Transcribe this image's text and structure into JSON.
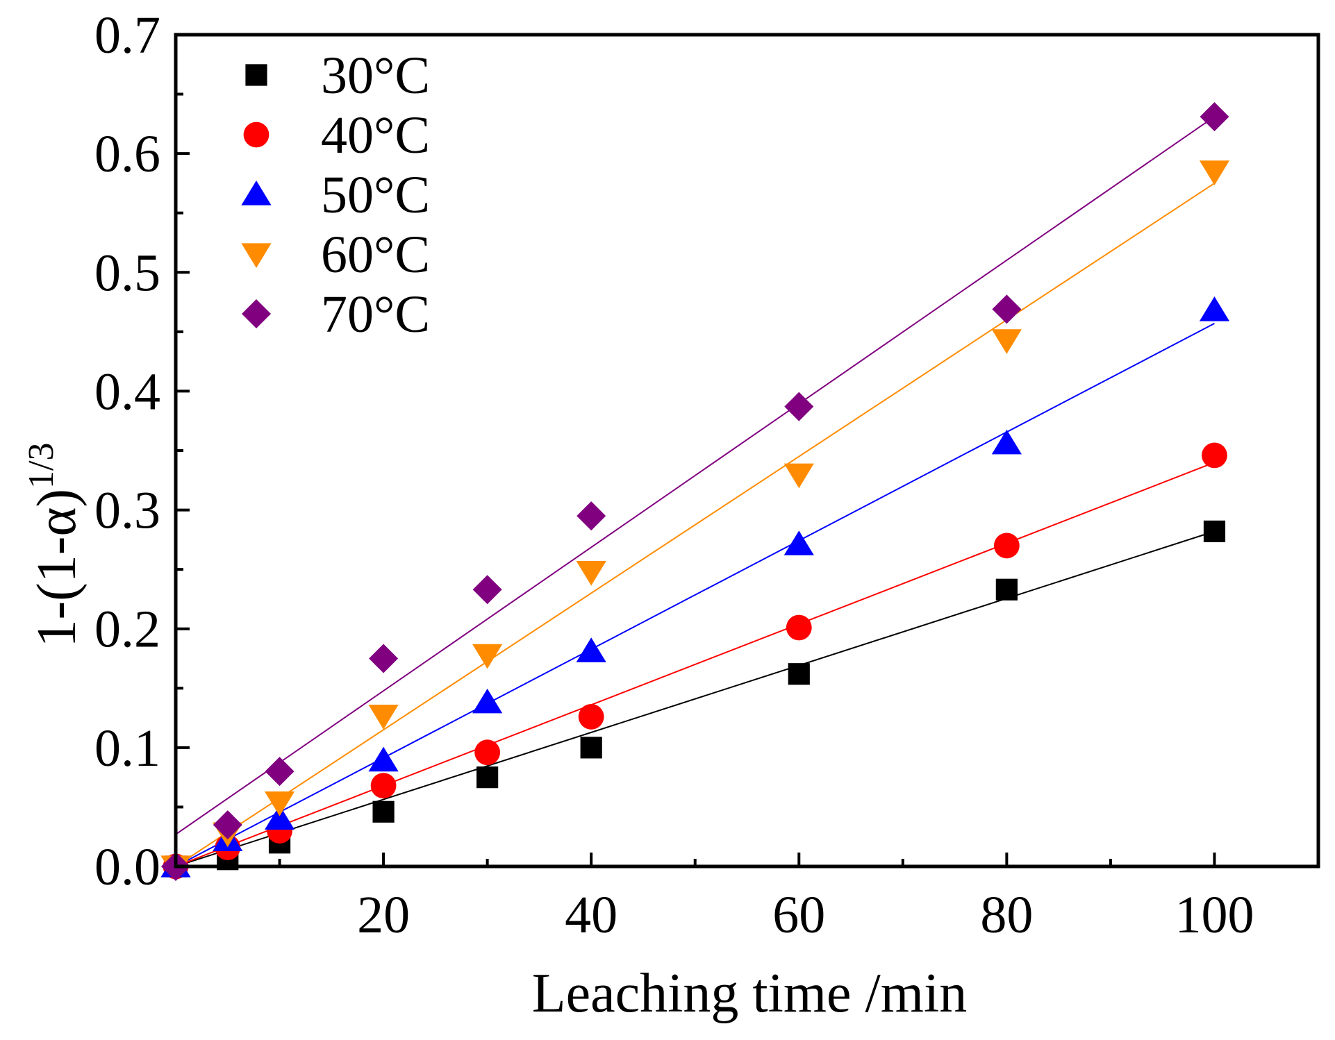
{
  "chart_data": {
    "type": "scatter",
    "title": "",
    "xlabel": "Leaching time /min",
    "ylabel": "1-(1-α)",
    "ylabel_superscript": "1/3",
    "xlim": [
      0,
      110
    ],
    "ylim": [
      0,
      0.7
    ],
    "x_ticks": [
      20,
      40,
      60,
      80,
      100
    ],
    "x_tick_labels": [
      "20",
      "40",
      "60",
      "80",
      "100"
    ],
    "y_ticks": [
      0,
      0.1,
      0.2,
      0.3,
      0.4,
      0.5,
      0.6,
      0.7
    ],
    "y_tick_labels": [
      "0.0",
      "0.1",
      "0.2",
      "0.3",
      "0.4",
      "0.5",
      "0.6",
      "0.7"
    ],
    "grid": false,
    "legend_position": "top-left",
    "series": [
      {
        "name": "30°C",
        "marker": "square",
        "color": "#000000",
        "x": [
          0,
          5,
          10,
          20,
          30,
          40,
          60,
          80,
          100
        ],
        "y": [
          0,
          0.006,
          0.02,
          0.046,
          0.075,
          0.1,
          0.162,
          0.233,
          0.282
        ],
        "fit": [
          0,
          0.282
        ]
      },
      {
        "name": "40°C",
        "marker": "circle",
        "color": "#ff0000",
        "x": [
          0,
          5,
          10,
          20,
          30,
          40,
          60,
          80,
          100
        ],
        "y": [
          0,
          0.016,
          0.03,
          0.068,
          0.096,
          0.126,
          0.201,
          0.27,
          0.346
        ],
        "fit": [
          0,
          0.34
        ]
      },
      {
        "name": "50°C",
        "marker": "triangle-up",
        "color": "#0000ff",
        "x": [
          0,
          5,
          10,
          20,
          30,
          40,
          60,
          80,
          100
        ],
        "y": [
          0,
          0.022,
          0.04,
          0.089,
          0.138,
          0.181,
          0.271,
          0.356,
          0.468
        ],
        "fit": [
          0,
          0.457
        ]
      },
      {
        "name": "60°C",
        "marker": "triangle-down",
        "color": "#ff8c00",
        "x": [
          0,
          5,
          10,
          20,
          30,
          40,
          60,
          80,
          100
        ],
        "y": [
          0,
          0.028,
          0.054,
          0.127,
          0.178,
          0.248,
          0.33,
          0.443,
          0.585
        ],
        "fit": [
          0,
          0.575
        ]
      },
      {
        "name": "70°C",
        "marker": "diamond",
        "color": "#800080",
        "x": [
          0,
          5,
          10,
          20,
          30,
          40,
          60,
          80,
          100
        ],
        "y": [
          0,
          0.035,
          0.08,
          0.175,
          0.233,
          0.295,
          0.387,
          0.469,
          0.631
        ],
        "fit": [
          0.027,
          0.631
        ]
      }
    ]
  }
}
